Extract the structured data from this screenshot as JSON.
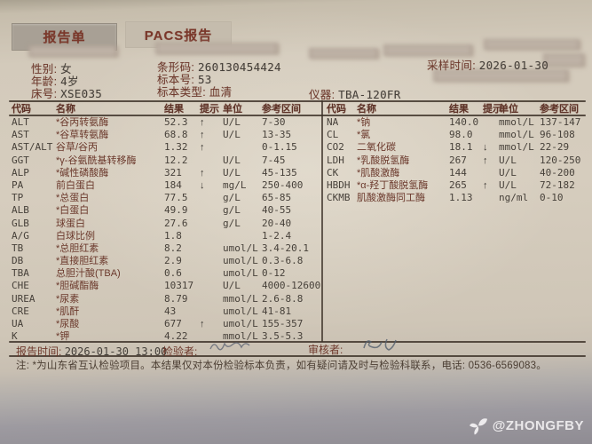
{
  "tabs": {
    "report": "报告单",
    "pacs": "PACS报告"
  },
  "patient": {
    "sex_label": "性别:",
    "sex": "女",
    "age_label": "年龄:",
    "age": "4岁",
    "bed_label": "床号:",
    "bed": "XSE035",
    "barcode_label": "条形码:",
    "barcode": "260130454424",
    "sample_no_label": "标本号:",
    "sample_no": "53",
    "sample_type_label": "标本类型:",
    "sample_type": "血清",
    "instrument_label": "仪器:",
    "instrument": "TBA-120FR",
    "sampling_time_label": "采样时间:",
    "sampling_time": "2026-01-30"
  },
  "left_table": {
    "headers": [
      "代码",
      "名称",
      "结果",
      "提示",
      "单位",
      "参考区间"
    ],
    "rows": [
      [
        "ALT",
        "*谷丙转氨酶",
        "52.3",
        "↑",
        "U/L",
        "7-30"
      ],
      [
        "AST",
        "*谷草转氨酶",
        "68.8",
        "↑",
        "U/L",
        "13-35"
      ],
      [
        "AST/ALT",
        "谷草/谷丙",
        "1.32",
        "↑",
        "",
        "0-1.15"
      ],
      [
        "GGT",
        "*γ-谷氨酰基转移酶",
        "12.2",
        "",
        "U/L",
        "7-45"
      ],
      [
        "ALP",
        "*碱性磷酸酶",
        "321",
        "↑",
        "U/L",
        "45-135"
      ],
      [
        "PA",
        "前白蛋白",
        "184",
        "↓",
        "mg/L",
        "250-400"
      ],
      [
        "TP",
        "*总蛋白",
        "77.5",
        "",
        "g/L",
        "65-85"
      ],
      [
        "ALB",
        "*白蛋白",
        "49.9",
        "",
        "g/L",
        "40-55"
      ],
      [
        "GLB",
        "球蛋白",
        "27.6",
        "",
        "g/L",
        "20-40"
      ],
      [
        "A/G",
        "白球比例",
        "1.8",
        "",
        "",
        "1-2.4"
      ],
      [
        "TB",
        "*总胆红素",
        "8.2",
        "",
        "umol/L",
        "3.4-20.1"
      ],
      [
        "DB",
        "*直接胆红素",
        "2.9",
        "",
        "umol/L",
        "0.3-6.8"
      ],
      [
        "TBA",
        "总胆汁酸(TBA)",
        "0.6",
        "",
        "umol/L",
        "0-12"
      ],
      [
        "CHE",
        "*胆碱酯酶",
        "10317",
        "",
        "U/L",
        "4000-12600"
      ],
      [
        "UREA",
        "*尿素",
        "8.79",
        "",
        "mmol/L",
        "2.6-8.8"
      ],
      [
        "CRE",
        "*肌酐",
        "43",
        "",
        "umol/L",
        "41-81"
      ],
      [
        "UA",
        "*尿酸",
        "677",
        "↑",
        "umol/L",
        "155-357"
      ],
      [
        "K",
        "*钾",
        "4.22",
        "",
        "mmol/L",
        "3.5-5.3"
      ]
    ]
  },
  "right_table": {
    "headers": [
      "代码",
      "名称",
      "结果",
      "提示",
      "单位",
      "参考区间"
    ],
    "rows": [
      [
        "NA",
        "*钠",
        "140.0",
        "",
        "mmol/L",
        "137-147"
      ],
      [
        "CL",
        "*氯",
        "98.0",
        "",
        "mmol/L",
        "96-108"
      ],
      [
        "CO2",
        "二氧化碳",
        "18.1",
        "↓",
        "mmol/L",
        "22-29"
      ],
      [
        "LDH",
        "*乳酸脱氢酶",
        "267",
        "↑",
        "U/L",
        "120-250"
      ],
      [
        "CK",
        "*肌酸激酶",
        "144",
        "",
        "U/L",
        "40-200"
      ],
      [
        "HBDH",
        "*α-羟丁酸脱氢酶",
        "265",
        "↑",
        "U/L",
        "72-182"
      ],
      [
        "CKMB",
        "肌酸激酶同工酶",
        "1.13",
        "",
        "ng/ml",
        "0-10"
      ]
    ]
  },
  "footer": {
    "report_time_label": "报告时间:",
    "report_time": "2026-01-30 13:00",
    "examiner_label": "检验者:",
    "reviewer_label": "审核者:",
    "note": "注: *为山东省互认检验项目。本结果仅对本份检验标本负责，如有疑问请及时与检验科联系，电话: 0536-6569083。"
  },
  "watermark": "@ZHONGFBY",
  "colors": {
    "accent_text": "#6e392c",
    "paper": "#d3cabb",
    "value_text": "#45403a"
  }
}
